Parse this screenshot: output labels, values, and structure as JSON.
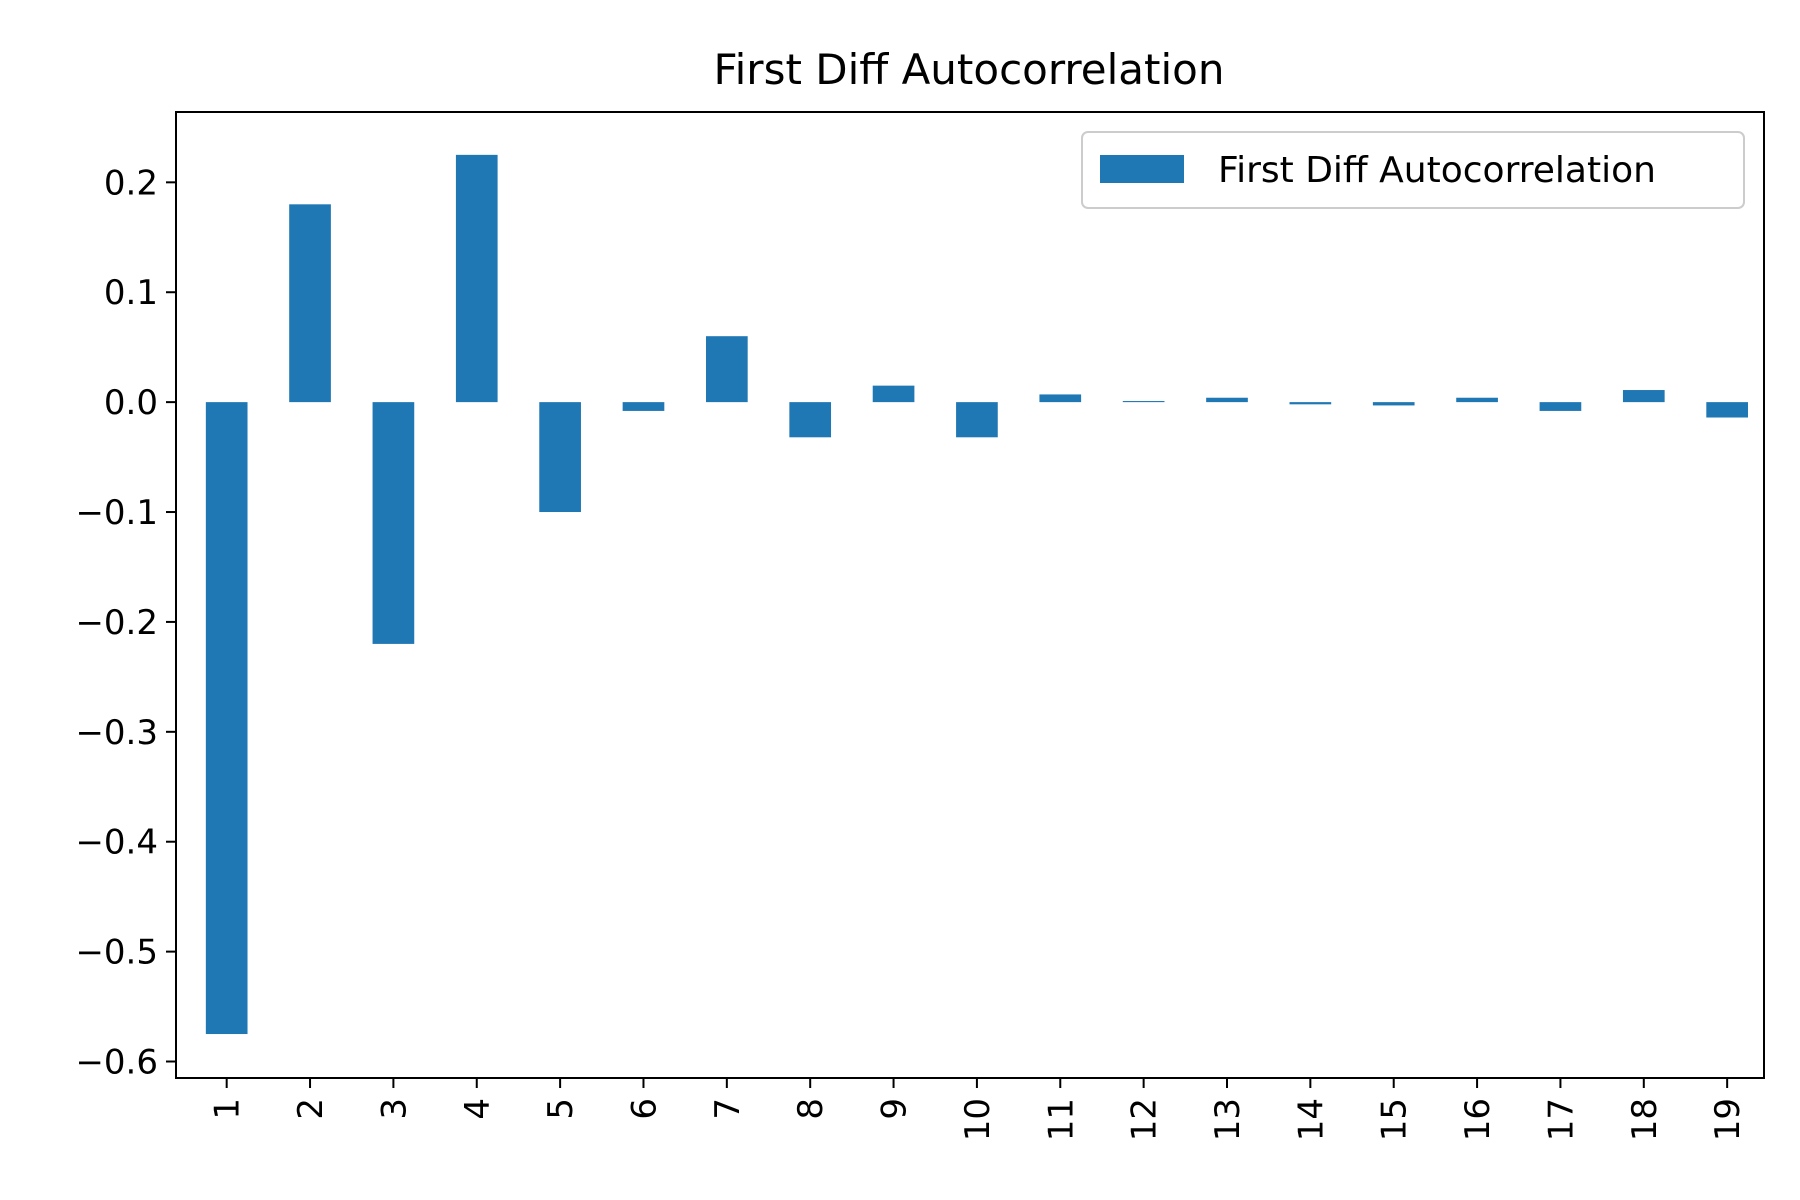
{
  "chart_data": {
    "type": "bar",
    "title": "First Diff Autocorrelation",
    "xlabel": "",
    "ylabel": "",
    "categories": [
      "1",
      "2",
      "3",
      "4",
      "5",
      "6",
      "7",
      "8",
      "9",
      "10",
      "11",
      "12",
      "13",
      "14",
      "15",
      "16",
      "17",
      "18",
      "19"
    ],
    "series": [
      {
        "name": "First Diff Autocorrelation",
        "color": "#1f77b4",
        "values": [
          -0.575,
          0.18,
          -0.22,
          0.225,
          -0.1,
          -0.008,
          0.06,
          -0.032,
          0.015,
          -0.032,
          0.007,
          0.001,
          0.004,
          -0.002,
          -0.003,
          0.004,
          -0.008,
          0.011,
          -0.014
        ]
      }
    ],
    "ylim": [
      -0.615,
      0.264
    ],
    "yticks": [
      -0.6,
      -0.5,
      -0.4,
      -0.3,
      -0.2,
      -0.1,
      0.0,
      0.1,
      0.2
    ],
    "ytick_labels": [
      "−0.6",
      "−0.5",
      "−0.4",
      "−0.3",
      "−0.2",
      "−0.1",
      "0.0",
      "0.1",
      "0.2"
    ],
    "grid": false,
    "legend": {
      "position": "top-right",
      "label": "First Diff Autocorrelation"
    }
  }
}
